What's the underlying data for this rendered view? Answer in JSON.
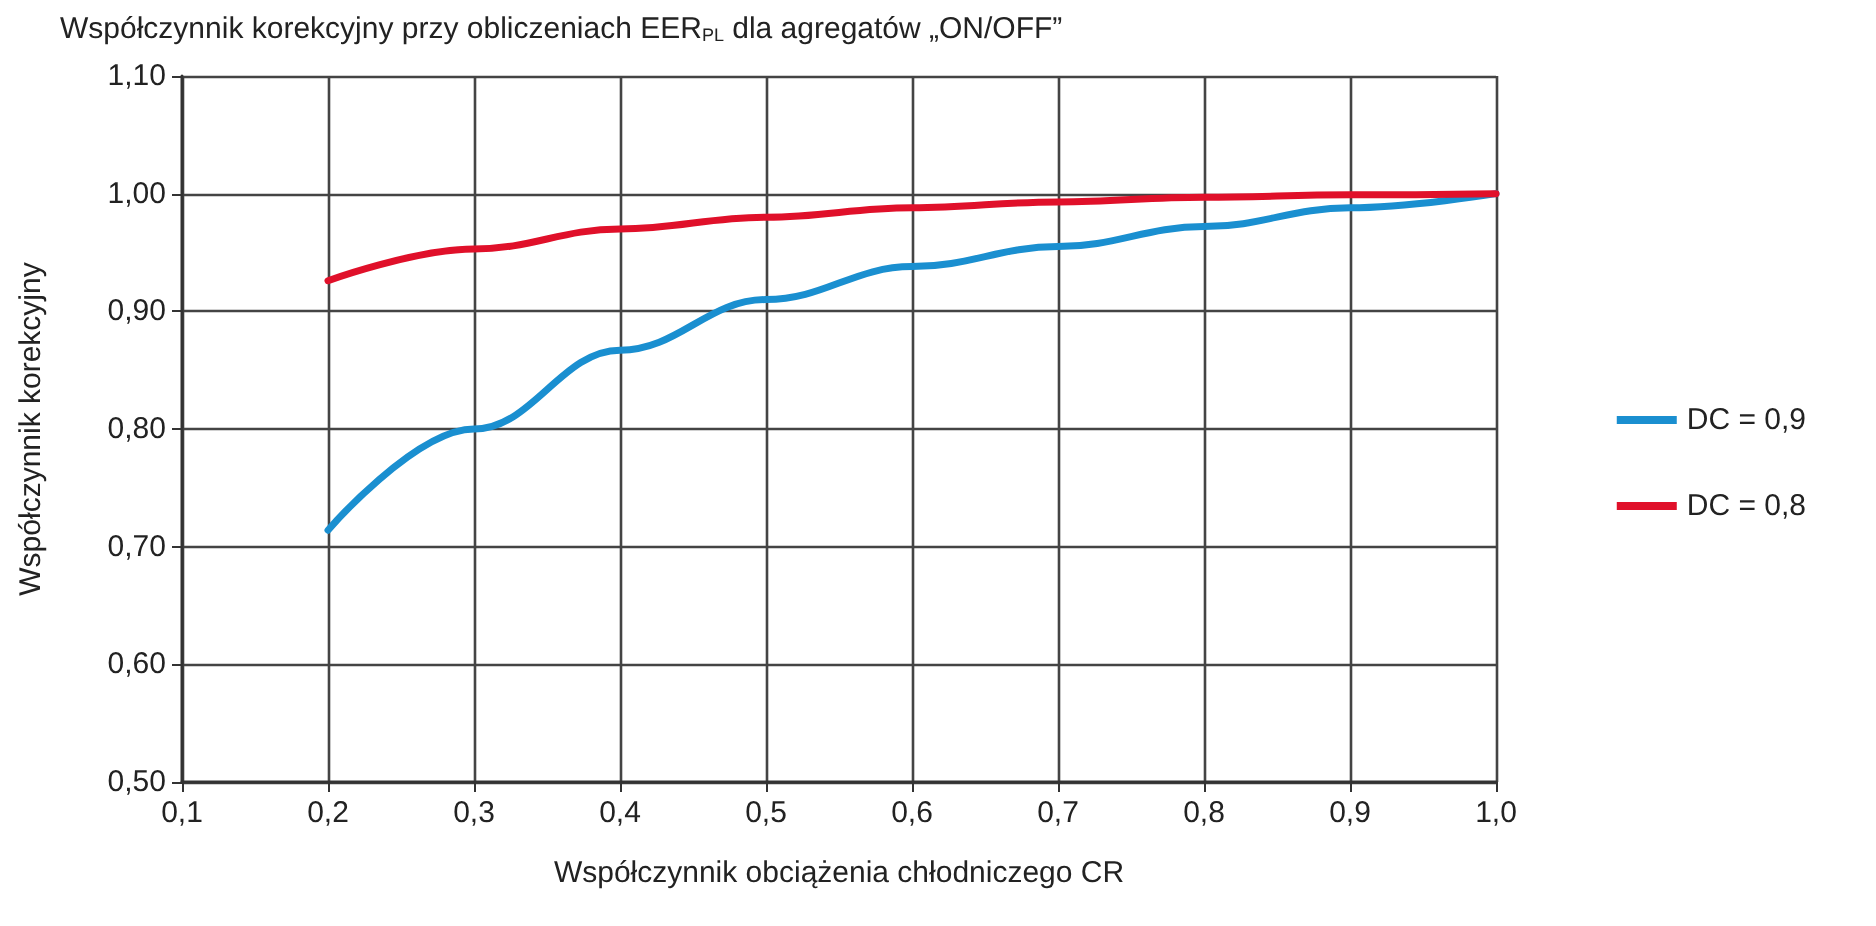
{
  "chart_data": {
    "type": "line",
    "title": "Współczynnik korekcyjny przy obliczeniach EER$_{PL}$ dla agregatów „ON/OFF”",
    "xlabel": "Współczynnik obciążenia chłodniczego CR",
    "ylabel": "Współczynnik korekcyjny",
    "x": [
      0.2,
      0.3,
      0.4,
      0.5,
      0.6,
      0.7,
      0.8,
      0.9,
      1.0
    ],
    "series": [
      {
        "name": "DC = 0,9",
        "color": "#1a8fd0",
        "values": [
          0.714,
          0.8,
          0.867,
          0.91,
          0.938,
          0.955,
          0.972,
          0.988,
          1.0
        ]
      },
      {
        "name": "DC = 0,8",
        "color": "#e0102a",
        "values": [
          0.926,
          0.953,
          0.97,
          0.98,
          0.988,
          0.993,
          0.997,
          0.999,
          1.0
        ]
      }
    ],
    "xlim": [
      0.1,
      1.0
    ],
    "xticks": [
      {
        "value": 0.1,
        "label": "0,1"
      },
      {
        "value": 0.2,
        "label": "0,2"
      },
      {
        "value": 0.3,
        "label": "0,3"
      },
      {
        "value": 0.4,
        "label": "0,4"
      },
      {
        "value": 0.5,
        "label": "0,5"
      },
      {
        "value": 0.6,
        "label": "0,6"
      },
      {
        "value": 0.7,
        "label": "0,7"
      },
      {
        "value": 0.8,
        "label": "0,8"
      },
      {
        "value": 0.9,
        "label": "0,9"
      },
      {
        "value": 1.0,
        "label": "1,0"
      }
    ],
    "ylim": [
      0.5,
      1.1
    ],
    "yticks": [
      {
        "value": 0.5,
        "label": "0,50"
      },
      {
        "value": 0.6,
        "label": "0,60"
      },
      {
        "value": 0.7,
        "label": "0,70"
      },
      {
        "value": 0.8,
        "label": "0,80"
      },
      {
        "value": 0.9,
        "label": "0,90"
      },
      {
        "value": 1.0,
        "label": "1,00"
      },
      {
        "value": 1.1,
        "label": "1,10"
      }
    ],
    "grid": true,
    "legend": "right",
    "marker": "none",
    "line_style": "solid"
  }
}
